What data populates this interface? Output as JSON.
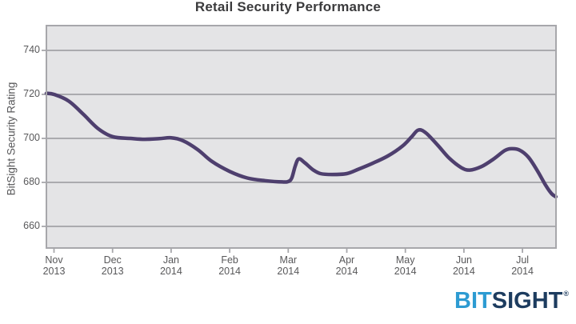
{
  "chart_data": {
    "type": "line",
    "title": "Retail Security Performance",
    "ylabel": "BitSight Security Rating",
    "xlabel": "",
    "ylim": [
      650,
      751
    ],
    "yticks": [
      740,
      720,
      700,
      680,
      660
    ],
    "x_ticks": [
      {
        "month": "Nov",
        "year": "2013"
      },
      {
        "month": "Dec",
        "year": "2013"
      },
      {
        "month": "Jan",
        "year": "2014"
      },
      {
        "month": "Feb",
        "year": "2014"
      },
      {
        "month": "Mar",
        "year": "2014"
      },
      {
        "month": "Apr",
        "year": "2014"
      },
      {
        "month": "May",
        "year": "2014"
      },
      {
        "month": "Jun",
        "year": "2014"
      },
      {
        "month": "Jul",
        "year": "2014"
      }
    ],
    "grid": true,
    "legend": "none",
    "plot_bg": "#e4e4e6",
    "grid_color": "#a2a2a6",
    "border_color": "#a7a7ab",
    "axis_text_color": "#58585a",
    "title_color": "#3b3b3d",
    "series": [
      {
        "name": "BitSight Security Rating (Retail)",
        "color": "#4e3f6e",
        "x_unit": "months since Nov 2013",
        "points": [
          [
            -0.13,
            720.5
          ],
          [
            0,
            720
          ],
          [
            0.25,
            717
          ],
          [
            0.5,
            711
          ],
          [
            0.75,
            704.5
          ],
          [
            1.0,
            700.8
          ],
          [
            1.3,
            700
          ],
          [
            1.55,
            699.6
          ],
          [
            1.8,
            699.9
          ],
          [
            2.0,
            700.3
          ],
          [
            2.2,
            699
          ],
          [
            2.45,
            695
          ],
          [
            2.7,
            689.5
          ],
          [
            3.0,
            685
          ],
          [
            3.3,
            682
          ],
          [
            3.6,
            680.8
          ],
          [
            3.9,
            680.2
          ],
          [
            4.0,
            680.4
          ],
          [
            4.06,
            682
          ],
          [
            4.12,
            687.5
          ],
          [
            4.18,
            690.7
          ],
          [
            4.28,
            689
          ],
          [
            4.42,
            685.8
          ],
          [
            4.55,
            684
          ],
          [
            4.75,
            683.6
          ],
          [
            5.0,
            684
          ],
          [
            5.2,
            686
          ],
          [
            5.45,
            688.8
          ],
          [
            5.7,
            692
          ],
          [
            5.95,
            696.5
          ],
          [
            6.1,
            700.5
          ],
          [
            6.22,
            703.8
          ],
          [
            6.35,
            702.5
          ],
          [
            6.55,
            697
          ],
          [
            6.75,
            691
          ],
          [
            6.95,
            686.8
          ],
          [
            7.1,
            685.6
          ],
          [
            7.3,
            687.2
          ],
          [
            7.5,
            690.5
          ],
          [
            7.7,
            694.5
          ],
          [
            7.82,
            695.3
          ],
          [
            7.95,
            694.7
          ],
          [
            8.1,
            691.5
          ],
          [
            8.25,
            685.5
          ],
          [
            8.4,
            678.5
          ],
          [
            8.5,
            674.8
          ],
          [
            8.57,
            673.5
          ]
        ]
      }
    ]
  },
  "logo": {
    "part1": "BIT",
    "part2": "SIGHT",
    "reg": "®",
    "part1_color": "#2d9bd2",
    "part2_color": "#1d3c5f"
  }
}
